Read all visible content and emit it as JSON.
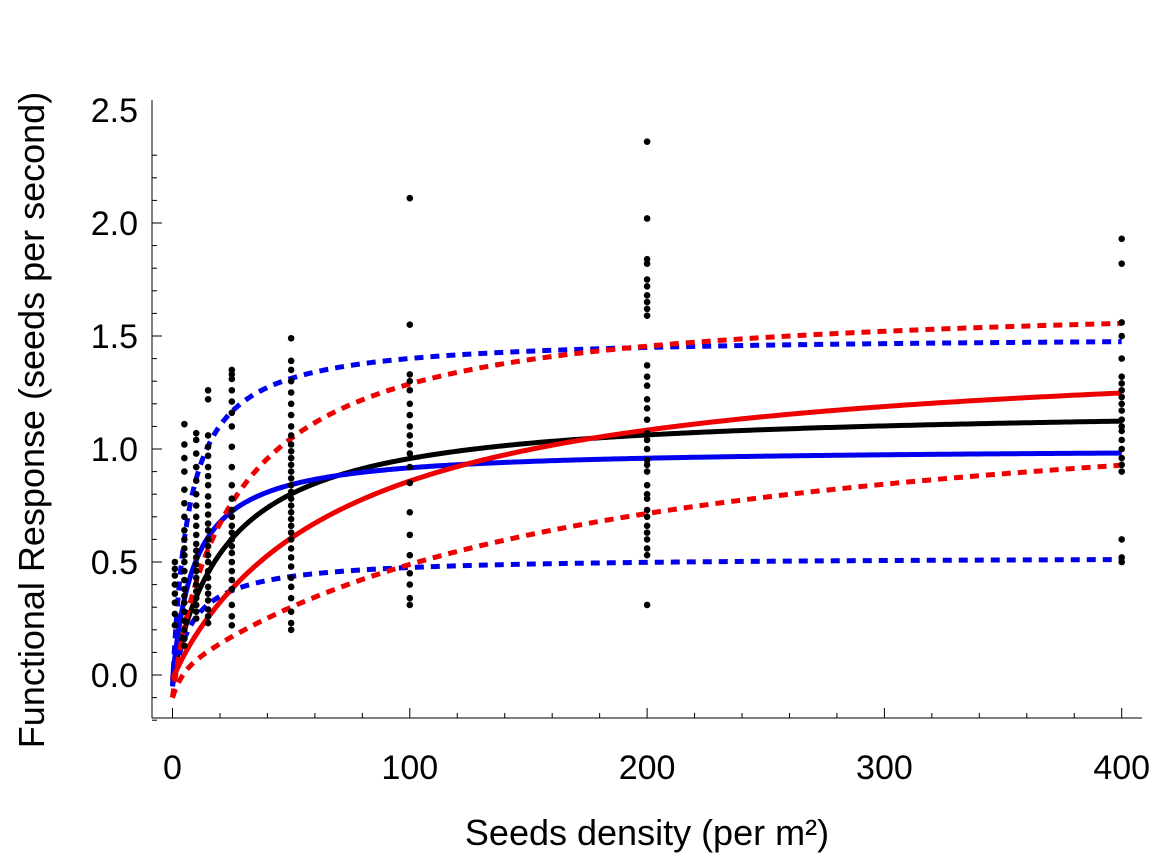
{
  "chart_data": {
    "type": "scatter",
    "xlabel": "Seeds density (per m²)",
    "ylabel": "Functional Response  (seeds per second)",
    "xlim": [
      -8,
      410
    ],
    "ylim": [
      -0.2,
      2.55
    ],
    "xticks": [
      0,
      100,
      200,
      300,
      400
    ],
    "xtick_labels": [
      "0",
      "100",
      "200",
      "300",
      "400"
    ],
    "yticks": [
      0.0,
      0.5,
      1.0,
      1.5,
      2.0,
      2.5
    ],
    "ytick_labels": [
      "0.0",
      "0.5",
      "1.0",
      "1.5",
      "2.0",
      "2.5"
    ],
    "grid": false,
    "legend": "none",
    "points": [
      {
        "x": 1,
        "y": [
          0.22,
          0.27,
          0.32,
          0.36,
          0.4,
          0.44,
          0.47,
          0.5
        ]
      },
      {
        "x": 5,
        "y": [
          0.13,
          0.16,
          0.2,
          0.24,
          0.28,
          0.32,
          0.35,
          0.38,
          0.42,
          0.46,
          0.5,
          0.53,
          0.56,
          0.6,
          0.64,
          0.7,
          0.76,
          0.82,
          0.9,
          0.96,
          1.02,
          1.11
        ]
      },
      {
        "x": 10,
        "y": [
          0.25,
          0.28,
          0.31,
          0.34,
          0.37,
          0.4,
          0.43,
          0.46,
          0.49,
          0.52,
          0.55,
          0.58,
          0.62,
          0.66,
          0.7,
          0.75,
          0.8,
          0.86,
          0.92,
          0.98,
          1.04,
          1.07
        ]
      },
      {
        "x": 15,
        "y": [
          0.23,
          0.26,
          0.29,
          0.33,
          0.36,
          0.39,
          0.43,
          0.46,
          0.5,
          0.53,
          0.57,
          0.6,
          0.64,
          0.67,
          0.71,
          0.75,
          0.79,
          0.84,
          0.88,
          0.92,
          0.97,
          1.01,
          1.06,
          1.22,
          1.26
        ]
      },
      {
        "x": 25,
        "y": [
          0.22,
          0.26,
          0.31,
          0.38,
          0.42,
          0.46,
          0.5,
          0.54,
          0.57,
          0.6,
          0.63,
          0.66,
          0.7,
          0.73,
          0.78,
          0.84,
          0.92,
          1.01,
          1.1,
          1.16,
          1.21,
          1.26,
          1.31,
          1.33,
          1.35
        ]
      },
      {
        "x": 50,
        "y": [
          0.2,
          0.23,
          0.28,
          0.34,
          0.39,
          0.43,
          0.48,
          0.52,
          0.56,
          0.6,
          0.63,
          0.66,
          0.69,
          0.72,
          0.75,
          0.78,
          0.81,
          0.84,
          0.87,
          0.9,
          0.93,
          0.96,
          0.99,
          1.02,
          1.06,
          1.1,
          1.15,
          1.2,
          1.25,
          1.3,
          1.35,
          1.39,
          1.49
        ]
      },
      {
        "x": 100,
        "y": [
          0.31,
          0.34,
          0.4,
          0.45,
          0.53,
          0.62,
          0.72,
          0.85,
          0.92,
          0.98,
          1.02,
          1.06,
          1.1,
          1.15,
          1.2,
          1.26,
          1.3,
          1.33,
          1.55,
          2.11
        ]
      },
      {
        "x": 200,
        "y": [
          0.31,
          0.53,
          0.56,
          0.6,
          0.63,
          0.66,
          0.7,
          0.73,
          0.78,
          0.8,
          0.84,
          0.9,
          0.93,
          0.95,
          1.0,
          1.04,
          1.07,
          1.13,
          1.18,
          1.22,
          1.28,
          1.32,
          1.37,
          1.59,
          1.62,
          1.65,
          1.68,
          1.72,
          1.75,
          1.82,
          1.84,
          2.02,
          2.36
        ]
      },
      {
        "x": 400,
        "y": [
          0.5,
          0.52,
          0.6,
          0.9,
          0.93,
          0.96,
          1.0,
          1.04,
          1.08,
          1.1,
          1.13,
          1.17,
          1.2,
          1.23,
          1.26,
          1.29,
          1.32,
          1.4,
          1.5,
          1.56,
          1.82,
          1.93
        ]
      }
    ],
    "curves": [
      {
        "color": "#000000",
        "style": "solid",
        "a": 0.0488,
        "h": 0.839
      },
      {
        "color": "#0000ee",
        "style": "solid",
        "a": 0.1033,
        "h": 0.994
      },
      {
        "color": "#0000ee",
        "style": "dashed",
        "a": 0.2083,
        "h": 0.666
      },
      {
        "color": "#0000ee",
        "style": "dashed",
        "a": 0.052,
        "h": 1.91
      },
      {
        "color": "#ee0000",
        "style": "solid",
        "a": 0.0206,
        "h": 0.68
      },
      {
        "color": "#ee0000",
        "style": "dashed",
        "a": 0.056,
        "h": 0.598
      },
      {
        "color": "#ee0000",
        "style": "dashed",
        "a": 0.00776,
        "h": 0.755
      }
    ]
  }
}
